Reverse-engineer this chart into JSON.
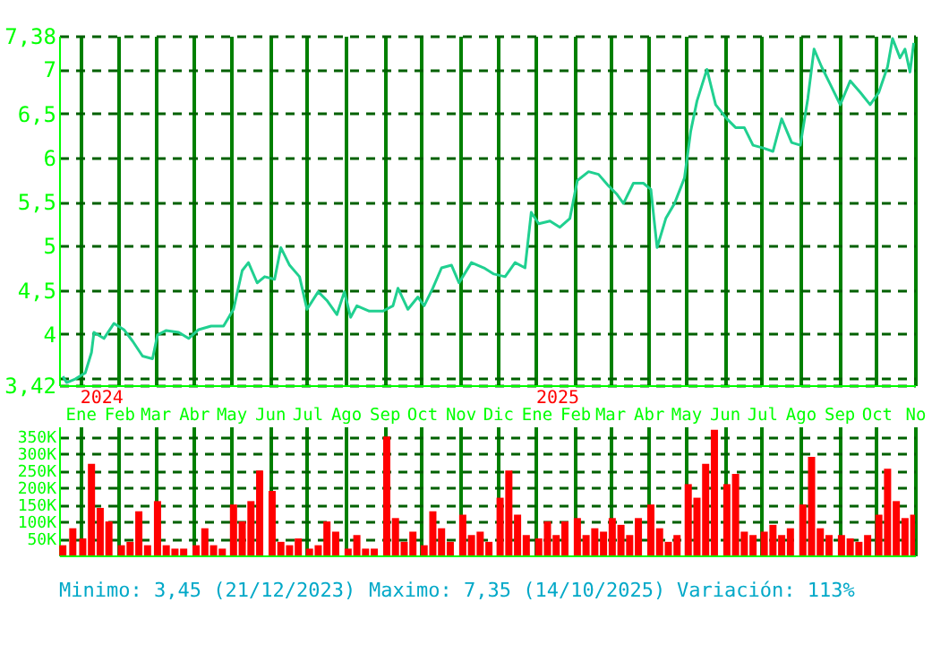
{
  "chart_data": [
    {
      "type": "line",
      "x": [
        "2023-12-18",
        "2023-12-21",
        "2023-12-28",
        "2024-01-05",
        "2024-01-10",
        "2024-01-12",
        "2024-01-20",
        "2024-01-28",
        "2024-02-05",
        "2024-02-12",
        "2024-02-20",
        "2024-02-28",
        "2024-03-03",
        "2024-03-10",
        "2024-03-20",
        "2024-03-28",
        "2024-04-05",
        "2024-04-15",
        "2024-04-25",
        "2024-05-03",
        "2024-05-10",
        "2024-05-15",
        "2024-05-22",
        "2024-05-28",
        "2024-06-05",
        "2024-06-10",
        "2024-06-17",
        "2024-06-25",
        "2024-07-01",
        "2024-07-10",
        "2024-07-17",
        "2024-07-25",
        "2024-07-31",
        "2024-08-05",
        "2024-08-10",
        "2024-08-20",
        "2024-08-31",
        "2024-09-08",
        "2024-09-12",
        "2024-09-20",
        "2024-09-28",
        "2024-10-03",
        "2024-10-10",
        "2024-10-17",
        "2024-10-25",
        "2024-10-31",
        "2024-11-03",
        "2024-11-10",
        "2024-11-20",
        "2024-11-28",
        "2024-12-07",
        "2024-12-15",
        "2024-12-23",
        "2024-12-28",
        "2025-01-03",
        "2025-01-12",
        "2025-01-20",
        "2025-01-28",
        "2025-02-03",
        "2025-02-12",
        "2025-02-20",
        "2025-02-28",
        "2025-03-07",
        "2025-03-12",
        "2025-03-20",
        "2025-03-28",
        "2025-04-03",
        "2025-04-08",
        "2025-04-15",
        "2025-04-22",
        "2025-04-30",
        "2025-05-05",
        "2025-05-10",
        "2025-05-18",
        "2025-05-25",
        "2025-06-03",
        "2025-06-10",
        "2025-06-17",
        "2025-06-24",
        "2025-07-02",
        "2025-07-10",
        "2025-07-17",
        "2025-07-25",
        "2025-08-01",
        "2025-08-07",
        "2025-08-12",
        "2025-08-18",
        "2025-08-25",
        "2025-09-02",
        "2025-09-10",
        "2025-09-18",
        "2025-09-26",
        "2025-10-03",
        "2025-10-10",
        "2025-10-14",
        "2025-10-20",
        "2025-10-24",
        "2025-10-28",
        "2025-10-31"
      ],
      "series": [
        {
          "color": "#20d090",
          "values": [
            3.52,
            3.45,
            3.49,
            3.56,
            3.79,
            4.02,
            3.95,
            4.12,
            4.05,
            3.92,
            3.75,
            3.72,
            3.99,
            4.04,
            4.02,
            3.95,
            4.05,
            4.09,
            4.09,
            4.28,
            4.72,
            4.81,
            4.58,
            4.65,
            4.62,
            4.98,
            4.78,
            4.65,
            4.28,
            4.48,
            4.38,
            4.22,
            4.48,
            4.19,
            4.32,
            4.26,
            4.26,
            4.32,
            4.52,
            4.28,
            4.42,
            4.32,
            4.52,
            4.75,
            4.78,
            4.58,
            4.65,
            4.81,
            4.75,
            4.68,
            4.65,
            4.81,
            4.75,
            5.38,
            5.25,
            5.28,
            5.21,
            5.31,
            5.74,
            5.84,
            5.81,
            5.68,
            5.58,
            5.48,
            5.71,
            5.71,
            5.64,
            4.98,
            5.31,
            5.48,
            5.77,
            6.3,
            6.64,
            7.0,
            6.6,
            6.44,
            6.34,
            6.34,
            6.14,
            6.11,
            6.07,
            6.44,
            6.17,
            6.14,
            6.67,
            7.23,
            7.03,
            6.83,
            6.6,
            6.87,
            6.74,
            6.6,
            6.74,
            7.03,
            7.35,
            7.13,
            7.23,
            6.97,
            7.3
          ]
        }
      ],
      "xlim": [
        "2023-12-15",
        "2025-11-01"
      ],
      "xticks": [
        {
          "value": "2024-01-01",
          "label": "Ene"
        },
        {
          "value": "2024-02-01",
          "label": "Feb"
        },
        {
          "value": "2024-03-01",
          "label": "Mar"
        },
        {
          "value": "2024-04-01",
          "label": "Abr"
        },
        {
          "value": "2024-05-01",
          "label": "May"
        },
        {
          "value": "2024-06-01",
          "label": "Jun"
        },
        {
          "value": "2024-07-01",
          "label": "Jul"
        },
        {
          "value": "2024-08-01",
          "label": "Ago"
        },
        {
          "value": "2024-09-01",
          "label": "Sep"
        },
        {
          "value": "2024-10-01",
          "label": "Oct"
        },
        {
          "value": "2024-11-01",
          "label": "Nov"
        },
        {
          "value": "2024-12-01",
          "label": "Dic"
        },
        {
          "value": "2025-01-01",
          "label": "Ene"
        },
        {
          "value": "2025-02-01",
          "label": "Feb"
        },
        {
          "value": "2025-03-01",
          "label": "Mar"
        },
        {
          "value": "2025-04-01",
          "label": "Abr"
        },
        {
          "value": "2025-05-01",
          "label": "May"
        },
        {
          "value": "2025-06-01",
          "label": "Jun"
        },
        {
          "value": "2025-07-01",
          "label": "Jul"
        },
        {
          "value": "2025-08-01",
          "label": "Ago"
        },
        {
          "value": "2025-09-01",
          "label": "Sep"
        },
        {
          "value": "2025-10-01",
          "label": "Oct"
        },
        {
          "value": "2025-11-01",
          "label": "No"
        }
      ],
      "ylim": [
        3.42,
        7.38
      ],
      "yticks": [
        {
          "value": 3.42,
          "label": "3,42"
        },
        {
          "value": 3.5,
          "label": null
        },
        {
          "value": 4,
          "label": "4"
        },
        {
          "value": 4.5,
          "label": "4,5"
        },
        {
          "value": 5,
          "label": "5"
        },
        {
          "value": 5.5,
          "label": "5,5"
        },
        {
          "value": 6,
          "label": "6"
        },
        {
          "value": 6.5,
          "label": "6,5"
        },
        {
          "value": 7,
          "label": "7"
        },
        {
          "value": 7.38,
          "label": "7,38"
        }
      ],
      "grid": true,
      "annotations": [
        "2024",
        "2025"
      ]
    },
    {
      "type": "bar",
      "x": [
        "2023-12-18",
        "2023-12-26",
        "2024-01-03",
        "2024-01-10",
        "2024-01-17",
        "2024-01-24",
        "2024-02-03",
        "2024-02-10",
        "2024-02-17",
        "2024-02-24",
        "2024-03-03",
        "2024-03-10",
        "2024-03-17",
        "2024-03-24",
        "2024-04-03",
        "2024-04-10",
        "2024-04-17",
        "2024-04-24",
        "2024-05-03",
        "2024-05-10",
        "2024-05-17",
        "2024-05-24",
        "2024-06-03",
        "2024-06-10",
        "2024-06-17",
        "2024-06-24",
        "2024-07-03",
        "2024-07-10",
        "2024-07-17",
        "2024-07-24",
        "2024-08-03",
        "2024-08-10",
        "2024-08-17",
        "2024-08-24",
        "2024-09-03",
        "2024-09-10",
        "2024-09-17",
        "2024-09-24",
        "2024-10-03",
        "2024-10-10",
        "2024-10-17",
        "2024-10-24",
        "2024-11-03",
        "2024-11-10",
        "2024-11-17",
        "2024-11-24",
        "2024-12-03",
        "2024-12-10",
        "2024-12-17",
        "2024-12-24",
        "2025-01-03",
        "2025-01-10",
        "2025-01-17",
        "2025-01-24",
        "2025-02-03",
        "2025-02-10",
        "2025-02-17",
        "2025-02-24",
        "2025-03-03",
        "2025-03-10",
        "2025-03-17",
        "2025-03-24",
        "2025-04-03",
        "2025-04-10",
        "2025-04-17",
        "2025-04-24",
        "2025-05-03",
        "2025-05-10",
        "2025-05-17",
        "2025-05-24",
        "2025-06-03",
        "2025-06-10",
        "2025-06-17",
        "2025-06-24",
        "2025-07-03",
        "2025-07-10",
        "2025-07-17",
        "2025-07-24",
        "2025-08-03",
        "2025-08-10",
        "2025-08-17",
        "2025-08-24",
        "2025-09-03",
        "2025-09-10",
        "2025-09-17",
        "2025-09-24",
        "2025-10-03",
        "2025-10-10",
        "2025-10-17",
        "2025-10-24",
        "2025-10-31"
      ],
      "series": [
        {
          "color": "#ff0000",
          "values": [
            30000,
            80000,
            50000,
            270000,
            140000,
            100000,
            30000,
            40000,
            130000,
            30000,
            160000,
            30000,
            20000,
            20000,
            30000,
            80000,
            30000,
            20000,
            150000,
            100000,
            160000,
            250000,
            190000,
            40000,
            30000,
            50000,
            20000,
            30000,
            100000,
            70000,
            20000,
            60000,
            20000,
            20000,
            350000,
            110000,
            40000,
            70000,
            30000,
            130000,
            80000,
            40000,
            120000,
            60000,
            70000,
            40000,
            170000,
            250000,
            120000,
            60000,
            50000,
            100000,
            60000,
            100000,
            110000,
            60000,
            80000,
            70000,
            110000,
            90000,
            60000,
            110000,
            150000,
            80000,
            40000,
            60000,
            210000,
            170000,
            270000,
            370000,
            210000,
            240000,
            70000,
            60000,
            70000,
            90000,
            60000,
            80000,
            150000,
            290000,
            80000,
            60000,
            60000,
            50000,
            40000,
            60000,
            120000,
            255000,
            160000,
            110000,
            120000
          ]
        }
      ],
      "xlim": [
        "2023-12-15",
        "2025-11-01"
      ],
      "xticks": [
        "2024-01-01",
        "2024-02-01",
        "2024-03-01",
        "2024-04-01",
        "2024-05-01",
        "2024-06-01",
        "2024-07-01",
        "2024-08-01",
        "2024-09-01",
        "2024-10-01",
        "2024-11-01",
        "2024-12-01",
        "2025-01-01",
        "2025-02-01",
        "2025-03-01",
        "2025-04-01",
        "2025-05-01",
        "2025-06-01",
        "2025-07-01",
        "2025-08-01",
        "2025-09-01",
        "2025-10-01",
        "2025-11-01"
      ],
      "ylim": [
        0,
        380000
      ],
      "yticks": [
        {
          "value": 50000,
          "label": "50K"
        },
        {
          "value": 100000,
          "label": "100K"
        },
        {
          "value": 150000,
          "label": "150K"
        },
        {
          "value": 200000,
          "label": "200K"
        },
        {
          "value": 250000,
          "label": "250K"
        },
        {
          "value": 300000,
          "label": "300K"
        },
        {
          "value": 350000,
          "label": "350K"
        }
      ],
      "grid": true,
      "tick_labels": "y",
      "annotations": [
        "Minimo: 3,45 (21/12/2023)",
        "Maximo: 7,35 (14/10/2025)",
        "Variación: 113%"
      ]
    }
  ]
}
